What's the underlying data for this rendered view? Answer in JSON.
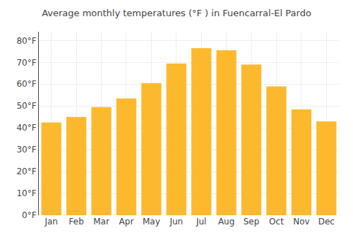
{
  "chart_data": {
    "type": "bar",
    "title": "Average monthly temperatures (°F ) in Fuencarral-El Pardo",
    "categories": [
      "Jan",
      "Feb",
      "Mar",
      "Apr",
      "May",
      "Jun",
      "Jul",
      "Aug",
      "Sep",
      "Oct",
      "Nov",
      "Dec"
    ],
    "values": [
      42.5,
      45.0,
      49.5,
      53.5,
      60.5,
      69.5,
      76.5,
      75.5,
      69.0,
      59.0,
      48.5,
      43.0
    ],
    "color": "#FDB92E",
    "ylim": [
      0,
      84
    ],
    "yticks": [
      {
        "value": 0,
        "label": "0°F"
      },
      {
        "value": 10,
        "label": "10°F"
      },
      {
        "value": 20,
        "label": "20°F"
      },
      {
        "value": 30,
        "label": "30°F"
      },
      {
        "value": 40,
        "label": "40°F"
      },
      {
        "value": 50,
        "label": "50°F"
      },
      {
        "value": 60,
        "label": "60°F"
      },
      {
        "value": 70,
        "label": "70°F"
      },
      {
        "value": 80,
        "label": "80°F"
      }
    ],
    "grid": true
  }
}
